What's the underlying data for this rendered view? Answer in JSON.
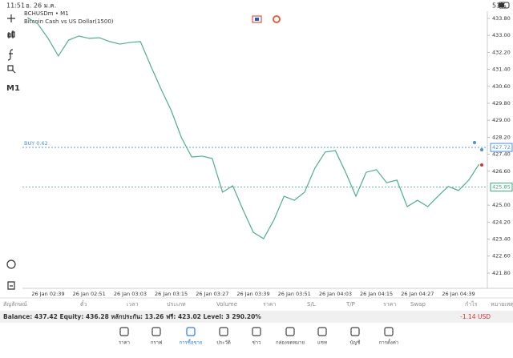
{
  "status_bar": {
    "time": "11:51",
    "date": "อ. 26 ม.ค.",
    "battery": "53%"
  },
  "toolbar": {
    "timeframe": "M1"
  },
  "chart_data": {
    "type": "line",
    "title": "BCHUSDm • M1",
    "subtitle": "Bitcoin Cash vs US Dollar(1500)",
    "categories": [
      null,
      null,
      "26 Jan 02:39",
      null,
      null,
      null,
      "26 Jan 02:51",
      null,
      null,
      null,
      "26 Jan 03:03",
      null,
      null,
      null,
      "26 Jan 03:15",
      null,
      null,
      null,
      "26 Jan 03:27",
      null,
      null,
      null,
      "26 Jan 03:39",
      null,
      null,
      null,
      "26 Jan 03:51",
      null,
      null,
      null,
      "26 Jan 04:03",
      null,
      null,
      null,
      "26 Jan 04:15",
      null,
      null,
      null,
      "26 Jan 04:27",
      null,
      null,
      null,
      "26 Jan 04:39",
      null,
      null
    ],
    "values": [
      433.84,
      433.54,
      432.86,
      432.03,
      432.78,
      432.97,
      432.86,
      432.89,
      432.71,
      432.59,
      432.67,
      432.71,
      431.57,
      430.48,
      429.46,
      428.18,
      427.27,
      427.31,
      427.2,
      425.61,
      425.91,
      424.78,
      423.72,
      423.42,
      424.29,
      425.42,
      425.23,
      425.61,
      426.74,
      427.5,
      427.57,
      426.55,
      425.42,
      426.55,
      426.67,
      426.06,
      426.18,
      424.93,
      425.23,
      424.93,
      425.42,
      425.88,
      425.69,
      426.18,
      426.93
    ],
    "color": "#4caf8f",
    "ylim": [
      421.08,
      434.14
    ],
    "yticks": [
      {
        "value": 433.8,
        "label": "433.80"
      },
      {
        "value": 433.0,
        "label": "433.00"
      },
      {
        "value": 432.2,
        "label": "432.20"
      },
      {
        "value": 431.4,
        "label": "431.40"
      },
      {
        "value": 430.6,
        "label": "430.60"
      },
      {
        "value": 429.8,
        "label": "429.80"
      },
      {
        "value": 429.0,
        "label": "429.00"
      },
      {
        "value": 428.2,
        "label": "428.20"
      },
      {
        "value": 427.4,
        "label": "427.40"
      },
      {
        "value": 426.6,
        "label": "426.60"
      },
      {
        "value": 425.0,
        "label": "425.00"
      },
      {
        "value": 424.2,
        "label": "424.20"
      },
      {
        "value": 423.4,
        "label": "423.40"
      },
      {
        "value": 422.6,
        "label": "422.60"
      },
      {
        "value": 421.8,
        "label": "421.80"
      }
    ],
    "price_lines": [
      {
        "label": "BUY 0.62",
        "value": 427.72,
        "color": "#4a90e2"
      },
      {
        "value": 425.85,
        "color": "#3aa57a"
      }
    ]
  },
  "positions_table": {
    "columns": [
      "สัญลักษณ์",
      "ตั๋ว",
      "เวลา",
      "ประเภท",
      "Volume",
      "ราคา",
      "S/L",
      "T/P",
      "ราคา",
      "Swap",
      "กำไร",
      "หมายเหตุ"
    ]
  },
  "account": {
    "summary": "Balance: 437.42 Equity: 436.28 หลักประกัน: 13.26 ฟรี: 423.02 Level: 3 290.20%",
    "profit": "-1.14 USD"
  },
  "nav": {
    "items": [
      "ราคา",
      "กราฟ",
      "การซื้อขาย",
      "ประวัติ",
      "ข่าว",
      "กล่องจดหมาย",
      "แชท",
      "บัญชี",
      "การตั้งค่า"
    ],
    "active": 2
  }
}
